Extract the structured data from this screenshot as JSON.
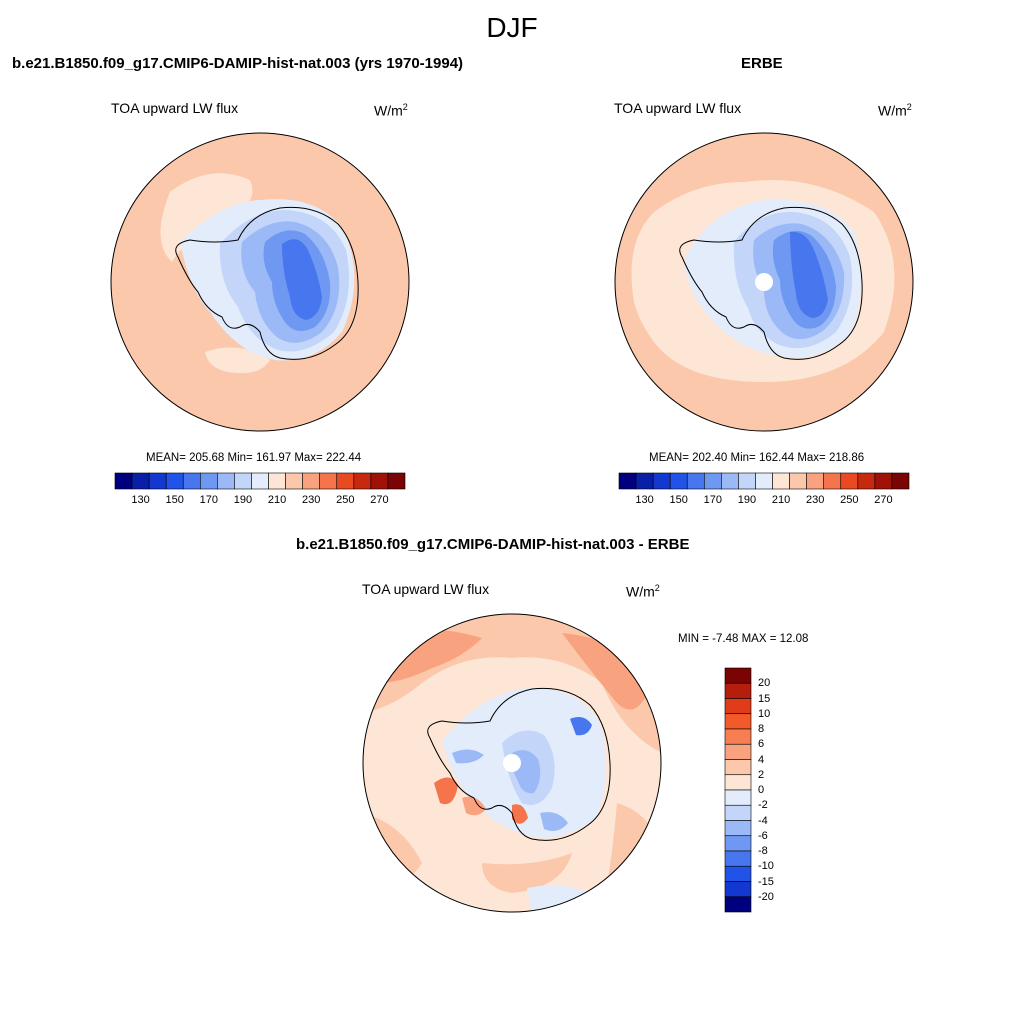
{
  "title": "DJF",
  "panels": [
    {
      "id": "model",
      "title": "b.e21.B1850.f09_g17.CMIP6-DAMIP-hist-nat.003 (yrs 1970-1994)",
      "variable": "TOA upward LW flux",
      "units": "W/m",
      "units_sup": "2",
      "stats": "MEAN= 205.68  Min= 161.97  Max= 222.44",
      "mean": 205.68,
      "min": 161.97,
      "max": 222.44
    },
    {
      "id": "obs",
      "title": "ERBE",
      "variable": "TOA upward LW flux",
      "units": "W/m",
      "units_sup": "2",
      "stats": "MEAN= 202.40  Min= 162.44  Max= 218.86",
      "mean": 202.4,
      "min": 162.44,
      "max": 218.86
    },
    {
      "id": "diff",
      "title": "b.e21.B1850.f09_g17.CMIP6-DAMIP-hist-nat.003 - ERBE",
      "variable": "TOA upward LW flux",
      "units": "W/m",
      "units_sup": "2",
      "stats": "MIN =  -7.48 MAX =  12.08",
      "min": -7.48,
      "max": 12.08
    }
  ],
  "abs_colorbar": {
    "labels": [
      "130",
      "150",
      "170",
      "190",
      "210",
      "230",
      "250",
      "270"
    ],
    "colors": [
      "#00007f",
      "#0a1fa8",
      "#1238d0",
      "#2253e8",
      "#4776ef",
      "#6e98f2",
      "#9ab9f6",
      "#c3d6f9",
      "#e3ecfb",
      "#fde6d6",
      "#fbc8ab",
      "#f9a27f",
      "#f5744c",
      "#e94a22",
      "#c62810",
      "#a01208",
      "#7a0404"
    ]
  },
  "diff_colorbar": {
    "labels": [
      "20",
      "15",
      "10",
      "8",
      "6",
      "4",
      "2",
      "0",
      "-2",
      "-4",
      "-6",
      "-8",
      "-10",
      "-15",
      "-20"
    ],
    "colors": [
      "#7a0404",
      "#b51d0c",
      "#e13c19",
      "#f25a2a",
      "#f77d52",
      "#f9a27f",
      "#fbc8ab",
      "#fde6d6",
      "#e3ecfb",
      "#c3d6f9",
      "#9ab9f6",
      "#6e98f2",
      "#4776ef",
      "#2253e8",
      "#1238d0",
      "#00007f"
    ]
  },
  "map_colors": {
    "ocean_abs": "#fbc8ab",
    "ocean_abs_light": "#fde6d6",
    "ice_light": "#e3ecfb",
    "ice_1": "#c3d6f9",
    "ice_2": "#9ab9f6",
    "ice_3": "#6e98f2",
    "ice_4": "#4776ef",
    "diff_bg": "#fde6d6",
    "diff_pos": "#fbc8ab",
    "diff_pos2": "#f9a27f",
    "diff_pos3": "#f5744c",
    "diff_neg": "#e3ecfb",
    "diff_neg2": "#c3d6f9",
    "diff_neg3": "#9ab9f6",
    "diff_neg4": "#4776ef",
    "missing": "#ffffff"
  }
}
